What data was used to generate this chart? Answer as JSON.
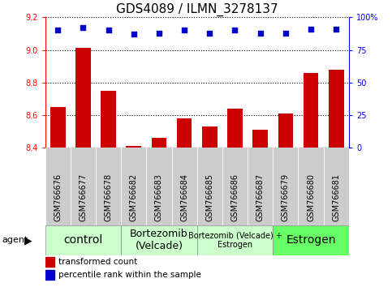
{
  "title": "GDS4089 / ILMN_3278137",
  "samples": [
    "GSM766676",
    "GSM766677",
    "GSM766678",
    "GSM766682",
    "GSM766683",
    "GSM766684",
    "GSM766685",
    "GSM766686",
    "GSM766687",
    "GSM766679",
    "GSM766680",
    "GSM766681"
  ],
  "bar_values": [
    8.65,
    9.01,
    8.75,
    8.41,
    8.46,
    8.58,
    8.53,
    8.64,
    8.51,
    8.61,
    8.86,
    8.88
  ],
  "percentile_values": [
    90,
    92,
    90,
    87,
    88,
    90,
    88,
    90,
    88,
    88,
    91,
    91
  ],
  "ylim": [
    8.4,
    9.2
  ],
  "yticks_left": [
    8.4,
    8.6,
    8.8,
    9.0,
    9.2
  ],
  "yticks_right": [
    0,
    25,
    50,
    75,
    100
  ],
  "bar_color": "#cc0000",
  "dot_color": "#0000cc",
  "bar_width": 0.6,
  "groups": [
    {
      "label": "control",
      "start": 0,
      "end": 2,
      "color": "#ccffcc",
      "fontsize": 10
    },
    {
      "label": "Bortezomib\n(Velcade)",
      "start": 3,
      "end": 5,
      "color": "#ccffcc",
      "fontsize": 9
    },
    {
      "label": "Bortezomib (Velcade) +\nEstrogen",
      "start": 6,
      "end": 8,
      "color": "#ccffcc",
      "fontsize": 7
    },
    {
      "label": "Estrogen",
      "start": 9,
      "end": 11,
      "color": "#66ff66",
      "fontsize": 10
    }
  ],
  "agent_label": "agent",
  "legend_bar_label": "transformed count",
  "legend_dot_label": "percentile rank within the sample",
  "title_fontsize": 11,
  "tick_label_fontsize": 7,
  "sample_label_fontsize": 7
}
